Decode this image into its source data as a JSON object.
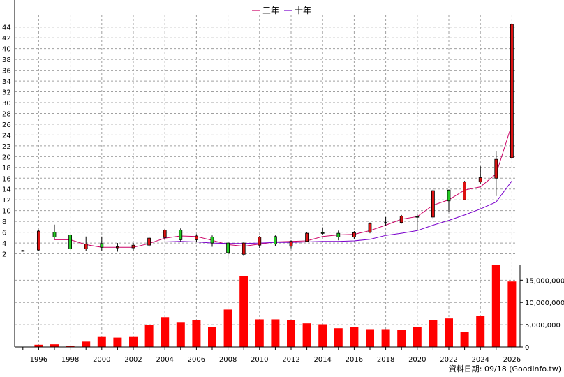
{
  "legend": [
    {
      "label": "三年",
      "color": "#cc0066"
    },
    {
      "label": "十年",
      "color": "#7a00cc"
    }
  ],
  "source_note": "資料日期: 09/18  (Goodinfo.tw)",
  "colors": {
    "up": "#dd1111",
    "down": "#22cc22",
    "volume": "#ff0000",
    "grid": "#a0a0a0"
  },
  "chart_data": [
    {
      "type": "candlestick",
      "ylim": [
        0,
        45
      ],
      "y_ticks": [
        2,
        4,
        6,
        8,
        10,
        12,
        14,
        16,
        18,
        20,
        22,
        24,
        26,
        28,
        30,
        32,
        34,
        36,
        38,
        40,
        42,
        44
      ],
      "x_ticks": [
        1996,
        1998,
        2000,
        2002,
        2004,
        2006,
        2008,
        2010,
        2012,
        2014,
        2016,
        2018,
        2020,
        2022,
        2024,
        2026
      ],
      "grid": true,
      "candles": [
        {
          "year": 1995,
          "open": 2.6,
          "close": 2.6,
          "high": 2.7,
          "low": 2.4
        },
        {
          "year": 1996,
          "open": 2.7,
          "close": 6.2,
          "high": 6.4,
          "low": 2.6
        },
        {
          "year": 1997,
          "open": 6.0,
          "close": 5.1,
          "high": 7.4,
          "low": 4.7
        },
        {
          "year": 1998,
          "open": 5.5,
          "close": 2.9,
          "high": 5.6,
          "low": 2.7
        },
        {
          "year": 1999,
          "open": 2.9,
          "close": 3.8,
          "high": 5.2,
          "low": 2.5
        },
        {
          "year": 2000,
          "open": 3.9,
          "close": 3.2,
          "high": 5.2,
          "low": 2.6
        },
        {
          "year": 2001,
          "open": 3.1,
          "close": 3.3,
          "high": 4.0,
          "low": 2.4
        },
        {
          "year": 2002,
          "open": 3.1,
          "close": 3.6,
          "high": 4.0,
          "low": 2.6
        },
        {
          "year": 2003,
          "open": 3.6,
          "close": 4.9,
          "high": 5.2,
          "low": 3.3
        },
        {
          "year": 2004,
          "open": 5.0,
          "close": 6.4,
          "high": 6.6,
          "low": 4.5
        },
        {
          "year": 2005,
          "open": 6.4,
          "close": 4.6,
          "high": 6.7,
          "low": 4.3
        },
        {
          "year": 2006,
          "open": 4.6,
          "close": 5.3,
          "high": 5.6,
          "low": 4.2
        },
        {
          "year": 2007,
          "open": 5.1,
          "close": 4.0,
          "high": 5.4,
          "low": 3.3
        },
        {
          "year": 2008,
          "open": 4.0,
          "close": 2.2,
          "high": 4.2,
          "low": 1.1
        },
        {
          "year": 2009,
          "open": 1.9,
          "close": 4.0,
          "high": 4.2,
          "low": 1.6
        },
        {
          "year": 2010,
          "open": 3.6,
          "close": 5.1,
          "high": 5.3,
          "low": 3.1
        },
        {
          "year": 2011,
          "open": 5.2,
          "close": 3.8,
          "high": 5.4,
          "low": 3.4
        },
        {
          "year": 2012,
          "open": 3.4,
          "close": 4.3,
          "high": 4.5,
          "low": 3.0
        },
        {
          "year": 2013,
          "open": 4.3,
          "close": 5.8,
          "high": 6.0,
          "low": 4.2
        },
        {
          "year": 2014,
          "open": 5.9,
          "close": 5.8,
          "high": 6.9,
          "low": 5.5
        },
        {
          "year": 2015,
          "open": 5.8,
          "close": 5.1,
          "high": 6.3,
          "low": 4.5
        },
        {
          "year": 2016,
          "open": 5.1,
          "close": 5.9,
          "high": 6.2,
          "low": 4.8
        },
        {
          "year": 2017,
          "open": 6.0,
          "close": 7.6,
          "high": 7.8,
          "low": 5.8
        },
        {
          "year": 2018,
          "open": 7.8,
          "close": 7.7,
          "high": 8.8,
          "low": 7.2
        },
        {
          "year": 2019,
          "open": 7.8,
          "close": 9.0,
          "high": 9.2,
          "low": 7.6
        },
        {
          "year": 2020,
          "open": 8.9,
          "close": 8.8,
          "high": 9.3,
          "low": 6.4
        },
        {
          "year": 2021,
          "open": 8.8,
          "close": 13.7,
          "high": 13.9,
          "low": 8.5
        },
        {
          "year": 2022,
          "open": 13.8,
          "close": 11.8,
          "high": 13.9,
          "low": 9.8
        },
        {
          "year": 2023,
          "open": 12.0,
          "close": 15.3,
          "high": 15.5,
          "low": 11.9
        },
        {
          "year": 2024,
          "open": 15.3,
          "close": 16.1,
          "high": 18.2,
          "low": 15.0
        },
        {
          "year": 2025,
          "open": 16.0,
          "close": 19.5,
          "high": 21.0,
          "low": 12.7
        },
        {
          "year": 2026,
          "open": 19.8,
          "close": 44.5,
          "high": 44.7,
          "low": 19.5
        }
      ],
      "series": [
        {
          "name": "三年",
          "color": "#cc0066",
          "x": [
            1997,
            1998,
            1999,
            2000,
            2001,
            2002,
            2003,
            2004,
            2005,
            2006,
            2007,
            2008,
            2009,
            2010,
            2011,
            2012,
            2013,
            2014,
            2015,
            2016,
            2017,
            2018,
            2019,
            2020,
            2021,
            2022,
            2023,
            2024,
            2025,
            2026
          ],
          "values": [
            4.6,
            4.6,
            3.7,
            3.2,
            3.2,
            3.2,
            3.9,
            4.9,
            5.3,
            5.2,
            4.5,
            3.7,
            3.4,
            3.8,
            4.2,
            4.3,
            4.4,
            5.2,
            5.5,
            5.6,
            6.3,
            7.3,
            8.4,
            8.9,
            11.0,
            12.0,
            13.8,
            14.4,
            16.8,
            26.0
          ]
        },
        {
          "name": "十年",
          "color": "#7a00cc",
          "x": [
            2004,
            2005,
            2006,
            2007,
            2008,
            2009,
            2010,
            2011,
            2012,
            2013,
            2014,
            2015,
            2016,
            2017,
            2018,
            2019,
            2020,
            2021,
            2022,
            2023,
            2024,
            2025,
            2026
          ],
          "values": [
            4.2,
            4.3,
            4.2,
            4.0,
            3.9,
            3.9,
            4.0,
            4.1,
            4.1,
            4.2,
            4.3,
            4.3,
            4.4,
            4.7,
            5.4,
            5.8,
            6.3,
            7.3,
            8.2,
            9.2,
            10.3,
            11.6,
            15.5
          ]
        }
      ]
    },
    {
      "type": "bar",
      "ylim": [
        0,
        18500000
      ],
      "y_ticks": [
        0,
        5000000,
        10000000,
        15000000
      ],
      "y_tick_labels": [
        "0",
        "5,000,000",
        "10,000,000",
        "15,000,000"
      ],
      "categories": [
        1996,
        1997,
        1998,
        1999,
        2000,
        2001,
        2002,
        2003,
        2004,
        2005,
        2006,
        2007,
        2008,
        2009,
        2010,
        2011,
        2012,
        2013,
        2014,
        2015,
        2016,
        2017,
        2018,
        2019,
        2020,
        2021,
        2022,
        2023,
        2024,
        2025,
        2026
      ],
      "values": [
        500000,
        600000,
        300000,
        1200000,
        2400000,
        2100000,
        2400000,
        5000000,
        6700000,
        5600000,
        6100000,
        4500000,
        8400000,
        15900000,
        6200000,
        6200000,
        6100000,
        5300000,
        5100000,
        4200000,
        4500000,
        4000000,
        4000000,
        3800000,
        4500000,
        6100000,
        6400000,
        3400000,
        7000000,
        18500000,
        14700000
      ]
    }
  ]
}
